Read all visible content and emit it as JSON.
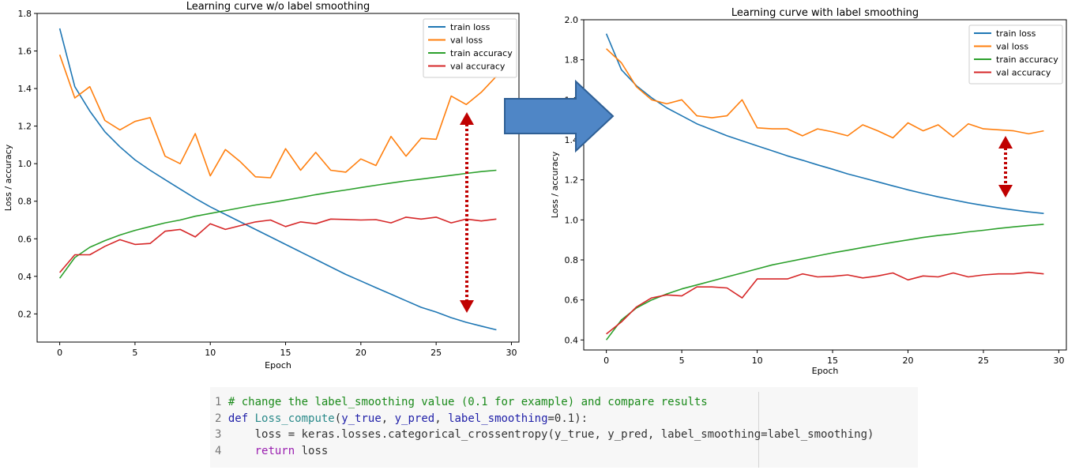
{
  "chart_data": [
    {
      "type": "line",
      "title": "Learning curve w/o label smoothing",
      "xlabel": "Epoch",
      "ylabel": "Loss / accuracy",
      "xlim": [
        -1.5,
        30.5
      ],
      "ylim": [
        0.05,
        1.8
      ],
      "xticks": [
        0,
        5,
        10,
        15,
        20,
        25,
        30
      ],
      "yticks": [
        0.2,
        0.4,
        0.6,
        0.8,
        1.0,
        1.2,
        1.4,
        1.6,
        1.8
      ],
      "legend": "top-right",
      "grid": false,
      "x": [
        0,
        1,
        2,
        3,
        4,
        5,
        6,
        7,
        8,
        9,
        10,
        11,
        12,
        13,
        14,
        15,
        16,
        17,
        18,
        19,
        20,
        21,
        22,
        23,
        24,
        25,
        26,
        27,
        28,
        29
      ],
      "series": [
        {
          "name": "train loss",
          "color": "#1f77b4",
          "values": [
            1.72,
            1.41,
            1.28,
            1.17,
            1.09,
            1.02,
            0.965,
            0.915,
            0.865,
            0.815,
            0.77,
            0.73,
            0.69,
            0.65,
            0.61,
            0.57,
            0.53,
            0.49,
            0.45,
            0.41,
            0.375,
            0.34,
            0.305,
            0.27,
            0.235,
            0.21,
            0.18,
            0.155,
            0.135,
            0.115
          ]
        },
        {
          "name": "val loss",
          "color": "#ff7f0e",
          "values": [
            1.58,
            1.35,
            1.41,
            1.23,
            1.18,
            1.225,
            1.245,
            1.04,
            1.0,
            1.16,
            0.935,
            1.075,
            1.01,
            0.93,
            0.925,
            1.08,
            0.965,
            1.06,
            0.965,
            0.955,
            1.025,
            0.99,
            1.145,
            1.04,
            1.135,
            1.13,
            1.36,
            1.315,
            1.38,
            1.465
          ]
        },
        {
          "name": "train accuracy",
          "color": "#2ca02c",
          "values": [
            0.39,
            0.5,
            0.555,
            0.59,
            0.62,
            0.645,
            0.665,
            0.685,
            0.7,
            0.72,
            0.735,
            0.75,
            0.765,
            0.78,
            0.792,
            0.806,
            0.82,
            0.835,
            0.848,
            0.86,
            0.873,
            0.885,
            0.897,
            0.908,
            0.918,
            0.928,
            0.938,
            0.948,
            0.958,
            0.965
          ]
        },
        {
          "name": "val accuracy",
          "color": "#d62728",
          "values": [
            0.42,
            0.515,
            0.515,
            0.56,
            0.595,
            0.57,
            0.575,
            0.64,
            0.65,
            0.61,
            0.68,
            0.65,
            0.67,
            0.69,
            0.7,
            0.665,
            0.69,
            0.68,
            0.705,
            0.703,
            0.7,
            0.702,
            0.685,
            0.715,
            0.705,
            0.715,
            0.685,
            0.705,
            0.695,
            0.705
          ]
        }
      ]
    },
    {
      "type": "line",
      "title": "Learning curve with label smoothing",
      "xlabel": "Epoch",
      "ylabel": "Loss / accuracy",
      "xlim": [
        -1.5,
        30.5
      ],
      "ylim": [
        0.35,
        2.0
      ],
      "xticks": [
        0,
        5,
        10,
        15,
        20,
        25,
        30
      ],
      "yticks": [
        0.4,
        0.6,
        0.8,
        1.0,
        1.2,
        1.4,
        1.6,
        1.8,
        2.0
      ],
      "legend": "top-right",
      "grid": false,
      "x": [
        0,
        1,
        2,
        3,
        4,
        5,
        6,
        7,
        8,
        9,
        10,
        11,
        12,
        13,
        14,
        15,
        16,
        17,
        18,
        19,
        20,
        21,
        22,
        23,
        24,
        25,
        26,
        27,
        28,
        29
      ],
      "series": [
        {
          "name": "train loss",
          "color": "#1f77b4",
          "values": [
            1.93,
            1.75,
            1.67,
            1.61,
            1.56,
            1.52,
            1.48,
            1.45,
            1.42,
            1.395,
            1.37,
            1.345,
            1.32,
            1.298,
            1.275,
            1.253,
            1.23,
            1.21,
            1.19,
            1.17,
            1.15,
            1.132,
            1.115,
            1.1,
            1.085,
            1.072,
            1.06,
            1.05,
            1.04,
            1.032
          ]
        },
        {
          "name": "val loss",
          "color": "#ff7f0e",
          "values": [
            1.855,
            1.785,
            1.665,
            1.6,
            1.58,
            1.6,
            1.52,
            1.51,
            1.52,
            1.6,
            1.46,
            1.455,
            1.455,
            1.42,
            1.455,
            1.44,
            1.42,
            1.475,
            1.445,
            1.41,
            1.485,
            1.445,
            1.475,
            1.415,
            1.48,
            1.455,
            1.45,
            1.445,
            1.43,
            1.445
          ]
        },
        {
          "name": "train accuracy",
          "color": "#2ca02c",
          "values": [
            0.4,
            0.5,
            0.56,
            0.6,
            0.63,
            0.655,
            0.675,
            0.695,
            0.715,
            0.735,
            0.755,
            0.775,
            0.79,
            0.805,
            0.82,
            0.835,
            0.848,
            0.862,
            0.875,
            0.888,
            0.9,
            0.912,
            0.922,
            0.93,
            0.94,
            0.948,
            0.957,
            0.965,
            0.972,
            0.978
          ]
        },
        {
          "name": "val accuracy",
          "color": "#d62728",
          "values": [
            0.43,
            0.49,
            0.565,
            0.61,
            0.625,
            0.62,
            0.665,
            0.665,
            0.66,
            0.61,
            0.705,
            0.705,
            0.705,
            0.73,
            0.715,
            0.718,
            0.725,
            0.71,
            0.72,
            0.735,
            0.7,
            0.72,
            0.715,
            0.735,
            0.715,
            0.725,
            0.73,
            0.73,
            0.738,
            0.73
          ]
        }
      ]
    }
  ],
  "code": {
    "lines": [
      {
        "num": "1",
        "parts": [
          {
            "cls": "cm",
            "text": "# change the label_smoothing value (0.1 for example) and compare results"
          }
        ]
      },
      {
        "num": "2",
        "parts": [
          {
            "cls": "kw",
            "text": "def "
          },
          {
            "cls": "fn",
            "text": "Loss_compute"
          },
          {
            "cls": "",
            "text": "("
          },
          {
            "cls": "kw",
            "text": "y_true"
          },
          {
            "cls": "",
            "text": ", "
          },
          {
            "cls": "kw",
            "text": "y_pred"
          },
          {
            "cls": "",
            "text": ", "
          },
          {
            "cls": "kw",
            "text": "label_smoothing"
          },
          {
            "cls": "",
            "text": "=0.1):"
          }
        ]
      },
      {
        "num": "3",
        "parts": [
          {
            "cls": "",
            "text": "    loss = keras.losses.categorical_crossentropy(y_true, y_pred, label_smoothing=label_smoothing)"
          }
        ]
      },
      {
        "num": "4",
        "parts": [
          {
            "cls": "kw2",
            "text": "    return "
          },
          {
            "cls": "",
            "text": "loss"
          }
        ]
      }
    ]
  },
  "annotations": {
    "arrow_color": "#4f86c6",
    "double_arrow_color": "#c00000"
  }
}
